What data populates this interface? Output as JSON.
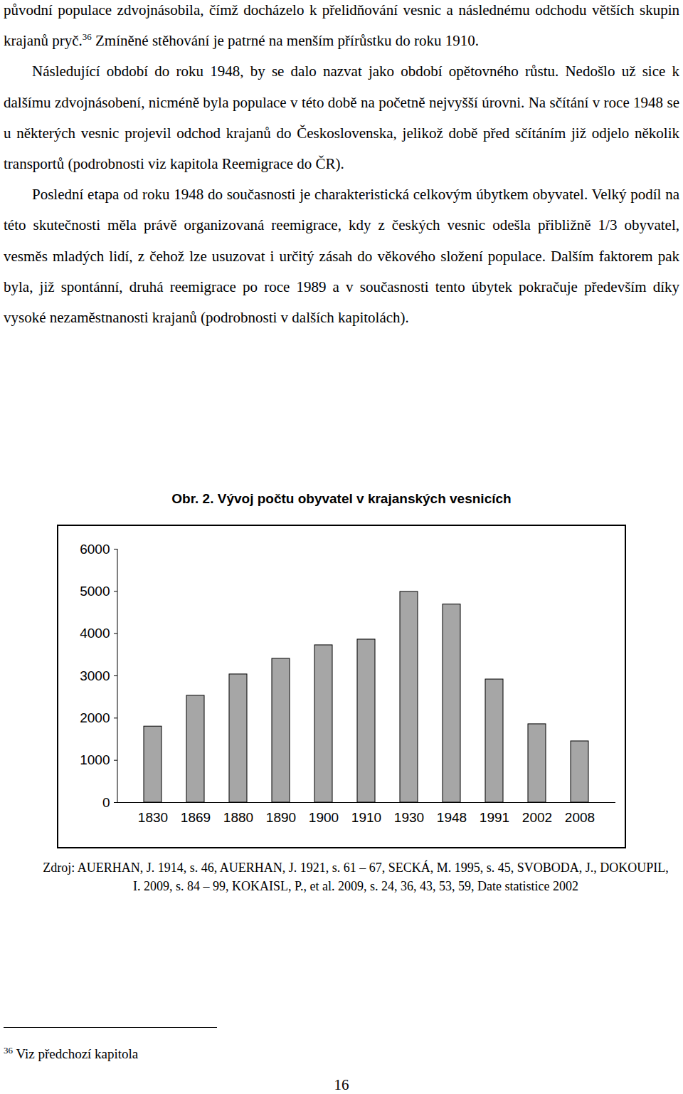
{
  "paragraphs": [
    [
      {
        "text": "původní populace zdvojnásobila, čímž docházelo k přelidňování vesnic a následnému odchodu větších skupin krajanů pryč."
      },
      {
        "sup": "36"
      },
      {
        "text": " Zmíněné stěhování je patrné na menším přírůstku do roku 1910."
      }
    ],
    [
      {
        "text": "Následující období do roku 1948, by se dalo nazvat jako období opětovného růstu. Nedošlo už sice k dalšímu zdvojnásobení, nicméně byla populace v této době na početně nejvyšší úrovni. Na sčítání v roce 1948 se u některých vesnic projevil odchod krajanů do Československa, jelikož době před sčítáním již odjelo několik transportů (podrobnosti viz kapitola Reemigrace do ČR)."
      }
    ],
    [
      {
        "text": "Poslední etapa od roku 1948 do současnosti je charakteristická celkovým úbytkem obyvatel. Velký podíl na této skutečnosti měla právě organizovaná reemigrace, kdy z českých vesnic odešla přibližně 1/3 obyvatel, vesměs mladých lidí, z čehož lze usuzovat i určitý zásah do věkového složení populace. Dalším faktorem pak byla, již spontánní, druhá reemigrace po roce 1989 a v současnosti tento úbytek pokračuje především díky vysoké nezaměstnanosti krajanů (podrobnosti v dalších kapitolách)."
      }
    ]
  ],
  "chart_data": {
    "type": "bar",
    "title": "Obr. 2. Vývoj počtu obyvatel v krajanských vesnicích",
    "categories": [
      "1830",
      "1869",
      "1880",
      "1890",
      "1900",
      "1910",
      "1930",
      "1948",
      "1991",
      "2002",
      "2008"
    ],
    "values": [
      1800,
      2530,
      3035,
      3405,
      3725,
      3860,
      4990,
      4690,
      2915,
      1855,
      1450
    ],
    "color": "#a6a6a6",
    "ylim": [
      0,
      6000
    ],
    "yticks": [
      0,
      1000,
      2000,
      3000,
      4000,
      5000,
      6000
    ],
    "grid": false
  },
  "source": "Zdroj: AUERHAN, J. 1914, s. 46, AUERHAN, J. 1921, s. 61 – 67, SECKÁ, M. 1995, s. 45, SVOBODA, J., DOKOUPIL, I. 2009, s. 84 – 99, KOKAISL, P., et al. 2009, s. 24, 36, 43, 53, 59, Date statistice 2002",
  "footnote": {
    "number": "36",
    "text": "Viz předchozí kapitola"
  },
  "page_number": "16"
}
